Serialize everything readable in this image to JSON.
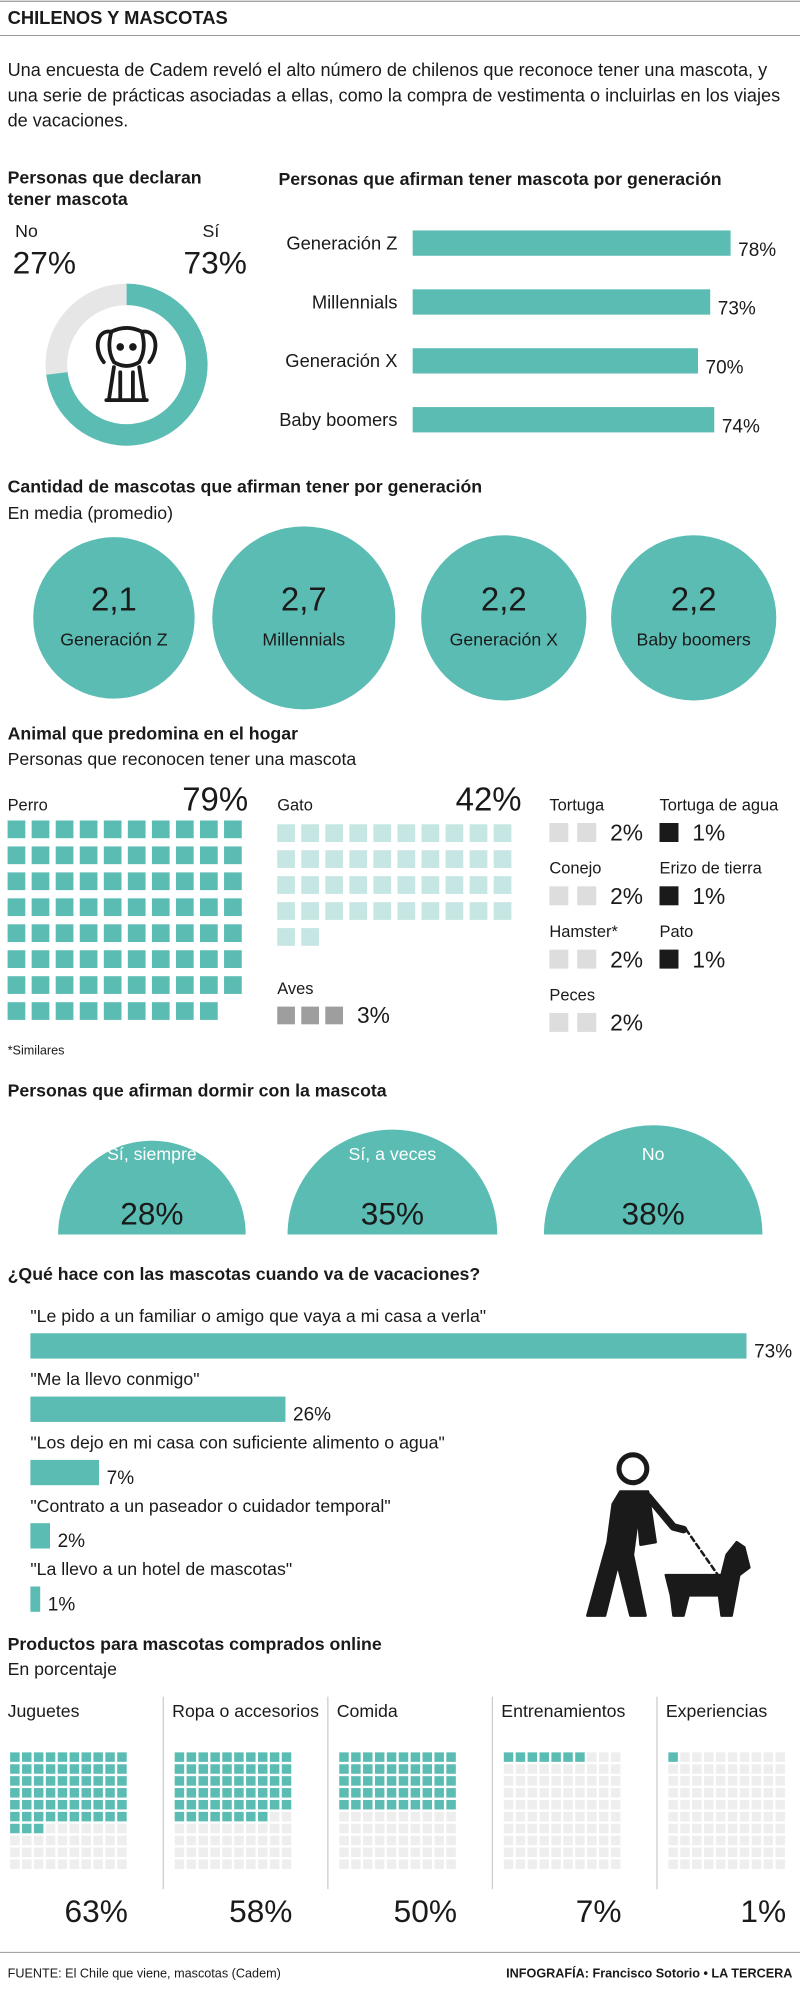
{
  "header": {
    "title": "CHILENOS Y MASCOTAS",
    "intro": "Una encuesta de Cadem reveló el alto número de chilenos que reconoce tener una mascota, y una serie de prácticas asociadas a ellas, como la compra de vestimenta o incluirlas en los viajes de vacaciones."
  },
  "chart_data": [
    {
      "type": "donut",
      "title": "Personas que declaran tener mascota",
      "categories": [
        "No",
        "Sí"
      ],
      "values": [
        27,
        73
      ],
      "value_labels": [
        "27%",
        "73%"
      ],
      "colors": [
        "#e6e6e6",
        "#5bbcb3"
      ]
    },
    {
      "type": "hbar",
      "title": "Personas que afirman tener mascota por generación",
      "categories": [
        "Generación Z",
        "Millennials",
        "Generación X",
        "Baby boomers"
      ],
      "values": [
        78,
        73,
        70,
        74
      ],
      "value_labels": [
        "78%",
        "73%",
        "70%",
        "74%"
      ],
      "color": "#5bbcb3"
    },
    {
      "type": "bubble",
      "title": "Cantidad de mascotas que afirman tener por generación",
      "subtitle": "En media (promedio)",
      "categories": [
        "Generación Z",
        "Millennials",
        "Generación X",
        "Baby boomers"
      ],
      "values": [
        2.1,
        2.7,
        2.2,
        2.2
      ],
      "value_labels": [
        "2,1",
        "2,7",
        "2,2",
        "2,2"
      ],
      "color": "#5bbcb3"
    },
    {
      "type": "waffle",
      "title": "Animal que predomina en el hogar",
      "subtitle": "Personas que reconocen tener una mascota",
      "categories": [
        "Perro",
        "Gato",
        "Aves",
        "Tortuga",
        "Conejo",
        "Hamster*",
        "Peces",
        "Tortuga de agua",
        "Erizo de tierra",
        "Pato"
      ],
      "values": [
        79,
        42,
        3,
        2,
        2,
        2,
        2,
        1,
        1,
        1
      ],
      "value_labels": [
        "79%",
        "42%",
        "3%",
        "2%",
        "2%",
        "2%",
        "2%",
        "1%",
        "1%",
        "1%"
      ],
      "colors": [
        "#5bbcb3",
        "#c5e6e3",
        "#9e9e9e",
        "#dddddd",
        "#dddddd",
        "#dddddd",
        "#dddddd",
        "#1a1a1a",
        "#1a1a1a",
        "#1a1a1a"
      ],
      "note": "*Similares"
    },
    {
      "type": "semicircle",
      "title": "Personas que afirman dormir con la mascota",
      "categories": [
        "Sí, siempre",
        "Sí, a veces",
        "No"
      ],
      "values": [
        28,
        35,
        38
      ],
      "value_labels": [
        "28%",
        "35%",
        "38%"
      ],
      "color": "#5bbcb3"
    },
    {
      "type": "hbar",
      "title": "¿Qué hace con las mascotas cuando va de vacaciones?",
      "categories": [
        "\"Le pido a un familiar o amigo que vaya a mi casa a verla\"",
        "\"Me la llevo conmigo\"",
        "\"Los dejo en mi casa con suficiente alimento o agua\"",
        "\"Contrato a un paseador o cuidador temporal\"",
        "\"La llevo a un hotel de mascotas\""
      ],
      "values": [
        73,
        26,
        7,
        2,
        1
      ],
      "value_labels": [
        "73%",
        "26%",
        "7%",
        "2%",
        "1%"
      ],
      "color": "#5bbcb3"
    },
    {
      "type": "waffle100",
      "title": "Productos para mascotas comprados online",
      "subtitle": "En porcentaje",
      "categories": [
        "Juguetes",
        "Ropa o accesorios",
        "Comida",
        "Entrenamientos",
        "Experiencias"
      ],
      "values": [
        63,
        58,
        50,
        7,
        1
      ],
      "value_labels": [
        "63%",
        "58%",
        "50%",
        "7%",
        "1%"
      ],
      "color": "#5bbcb3",
      "empty_color": "#eeeeee"
    }
  ],
  "footer": {
    "source": "FUENTE: El Chile que viene, mascotas (Cadem)",
    "credit": "INFOGRAFÍA: Francisco Sotorio • LA TERCERA"
  }
}
